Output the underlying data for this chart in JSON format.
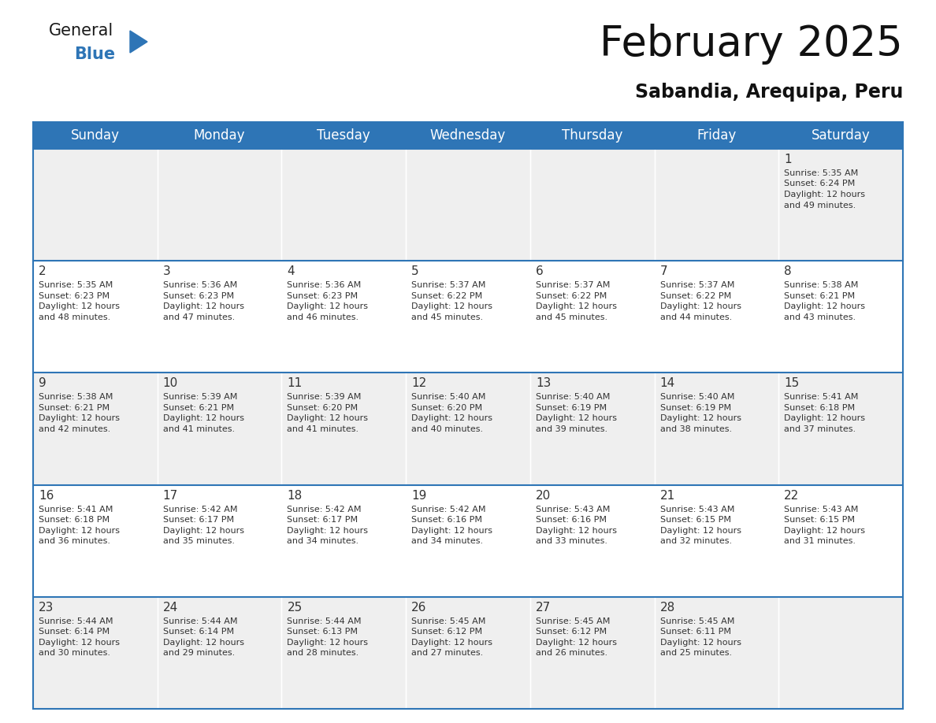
{
  "title": "February 2025",
  "subtitle": "Sabandia, Arequipa, Peru",
  "header_bg": "#2E75B6",
  "header_text_color": "#FFFFFF",
  "cell_bg_light": "#EFEFEF",
  "cell_bg_white": "#FFFFFF",
  "cell_border_color": "#2E75B6",
  "text_color": "#333333",
  "day_headers": [
    "Sunday",
    "Monday",
    "Tuesday",
    "Wednesday",
    "Thursday",
    "Friday",
    "Saturday"
  ],
  "calendar_data": [
    [
      null,
      null,
      null,
      null,
      null,
      null,
      {
        "day": 1,
        "sunrise": "5:35 AM",
        "sunset": "6:24 PM",
        "daylight": "12 hours\nand 49 minutes."
      }
    ],
    [
      {
        "day": 2,
        "sunrise": "5:35 AM",
        "sunset": "6:23 PM",
        "daylight": "12 hours\nand 48 minutes."
      },
      {
        "day": 3,
        "sunrise": "5:36 AM",
        "sunset": "6:23 PM",
        "daylight": "12 hours\nand 47 minutes."
      },
      {
        "day": 4,
        "sunrise": "5:36 AM",
        "sunset": "6:23 PM",
        "daylight": "12 hours\nand 46 minutes."
      },
      {
        "day": 5,
        "sunrise": "5:37 AM",
        "sunset": "6:22 PM",
        "daylight": "12 hours\nand 45 minutes."
      },
      {
        "day": 6,
        "sunrise": "5:37 AM",
        "sunset": "6:22 PM",
        "daylight": "12 hours\nand 45 minutes."
      },
      {
        "day": 7,
        "sunrise": "5:37 AM",
        "sunset": "6:22 PM",
        "daylight": "12 hours\nand 44 minutes."
      },
      {
        "day": 8,
        "sunrise": "5:38 AM",
        "sunset": "6:21 PM",
        "daylight": "12 hours\nand 43 minutes."
      }
    ],
    [
      {
        "day": 9,
        "sunrise": "5:38 AM",
        "sunset": "6:21 PM",
        "daylight": "12 hours\nand 42 minutes."
      },
      {
        "day": 10,
        "sunrise": "5:39 AM",
        "sunset": "6:21 PM",
        "daylight": "12 hours\nand 41 minutes."
      },
      {
        "day": 11,
        "sunrise": "5:39 AM",
        "sunset": "6:20 PM",
        "daylight": "12 hours\nand 41 minutes."
      },
      {
        "day": 12,
        "sunrise": "5:40 AM",
        "sunset": "6:20 PM",
        "daylight": "12 hours\nand 40 minutes."
      },
      {
        "day": 13,
        "sunrise": "5:40 AM",
        "sunset": "6:19 PM",
        "daylight": "12 hours\nand 39 minutes."
      },
      {
        "day": 14,
        "sunrise": "5:40 AM",
        "sunset": "6:19 PM",
        "daylight": "12 hours\nand 38 minutes."
      },
      {
        "day": 15,
        "sunrise": "5:41 AM",
        "sunset": "6:18 PM",
        "daylight": "12 hours\nand 37 minutes."
      }
    ],
    [
      {
        "day": 16,
        "sunrise": "5:41 AM",
        "sunset": "6:18 PM",
        "daylight": "12 hours\nand 36 minutes."
      },
      {
        "day": 17,
        "sunrise": "5:42 AM",
        "sunset": "6:17 PM",
        "daylight": "12 hours\nand 35 minutes."
      },
      {
        "day": 18,
        "sunrise": "5:42 AM",
        "sunset": "6:17 PM",
        "daylight": "12 hours\nand 34 minutes."
      },
      {
        "day": 19,
        "sunrise": "5:42 AM",
        "sunset": "6:16 PM",
        "daylight": "12 hours\nand 34 minutes."
      },
      {
        "day": 20,
        "sunrise": "5:43 AM",
        "sunset": "6:16 PM",
        "daylight": "12 hours\nand 33 minutes."
      },
      {
        "day": 21,
        "sunrise": "5:43 AM",
        "sunset": "6:15 PM",
        "daylight": "12 hours\nand 32 minutes."
      },
      {
        "day": 22,
        "sunrise": "5:43 AM",
        "sunset": "6:15 PM",
        "daylight": "12 hours\nand 31 minutes."
      }
    ],
    [
      {
        "day": 23,
        "sunrise": "5:44 AM",
        "sunset": "6:14 PM",
        "daylight": "12 hours\nand 30 minutes."
      },
      {
        "day": 24,
        "sunrise": "5:44 AM",
        "sunset": "6:14 PM",
        "daylight": "12 hours\nand 29 minutes."
      },
      {
        "day": 25,
        "sunrise": "5:44 AM",
        "sunset": "6:13 PM",
        "daylight": "12 hours\nand 28 minutes."
      },
      {
        "day": 26,
        "sunrise": "5:45 AM",
        "sunset": "6:12 PM",
        "daylight": "12 hours\nand 27 minutes."
      },
      {
        "day": 27,
        "sunrise": "5:45 AM",
        "sunset": "6:12 PM",
        "daylight": "12 hours\nand 26 minutes."
      },
      {
        "day": 28,
        "sunrise": "5:45 AM",
        "sunset": "6:11 PM",
        "daylight": "12 hours\nand 25 minutes."
      },
      null
    ]
  ],
  "logo_text_general": "General",
  "logo_text_blue": "Blue",
  "logo_triangle_color": "#2E75B6",
  "title_fontsize": 38,
  "subtitle_fontsize": 17,
  "header_fontsize": 12,
  "day_num_fontsize": 11,
  "cell_text_fontsize": 8
}
